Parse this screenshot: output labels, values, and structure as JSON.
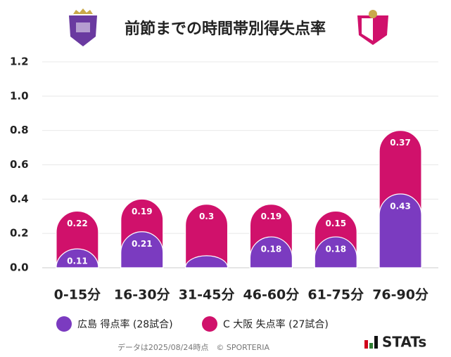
{
  "chart_data": {
    "type": "bar",
    "stacked": true,
    "title": "前節までの時間帯別得失点率",
    "categories": [
      "0-15分",
      "16-30分",
      "31-45分",
      "46-60分",
      "61-75分",
      "76-90分"
    ],
    "series": [
      {
        "name": "広島 得点率 (28試合)",
        "color": "#7b3bc0",
        "values": [
          0.11,
          0.21,
          0.07,
          0.18,
          0.18,
          0.43
        ],
        "value_labels": [
          "0.11",
          "0.21",
          null,
          "0.18",
          "0.18",
          "0.43"
        ]
      },
      {
        "name": "C 大阪 失点率 (27試合)",
        "color": "#d0116b",
        "values": [
          0.22,
          0.19,
          0.3,
          0.19,
          0.15,
          0.37
        ]
      }
    ],
    "ylim": [
      0,
      1.2
    ],
    "yticks": [
      {
        "value": 0,
        "label": "0.0"
      },
      {
        "value": 0.2,
        "label": "0.2"
      },
      {
        "value": 0.4,
        "label": "0.4"
      },
      {
        "value": 0.6,
        "label": "0.6"
      },
      {
        "value": 0.8,
        "label": "0.8"
      },
      {
        "value": 1.0,
        "label": "1.0"
      },
      {
        "value": 1.2,
        "label": "1.2"
      }
    ],
    "grid": true,
    "footnote": "データは2025/08/24時点　© SPORTERIA",
    "brand": "STATs"
  }
}
